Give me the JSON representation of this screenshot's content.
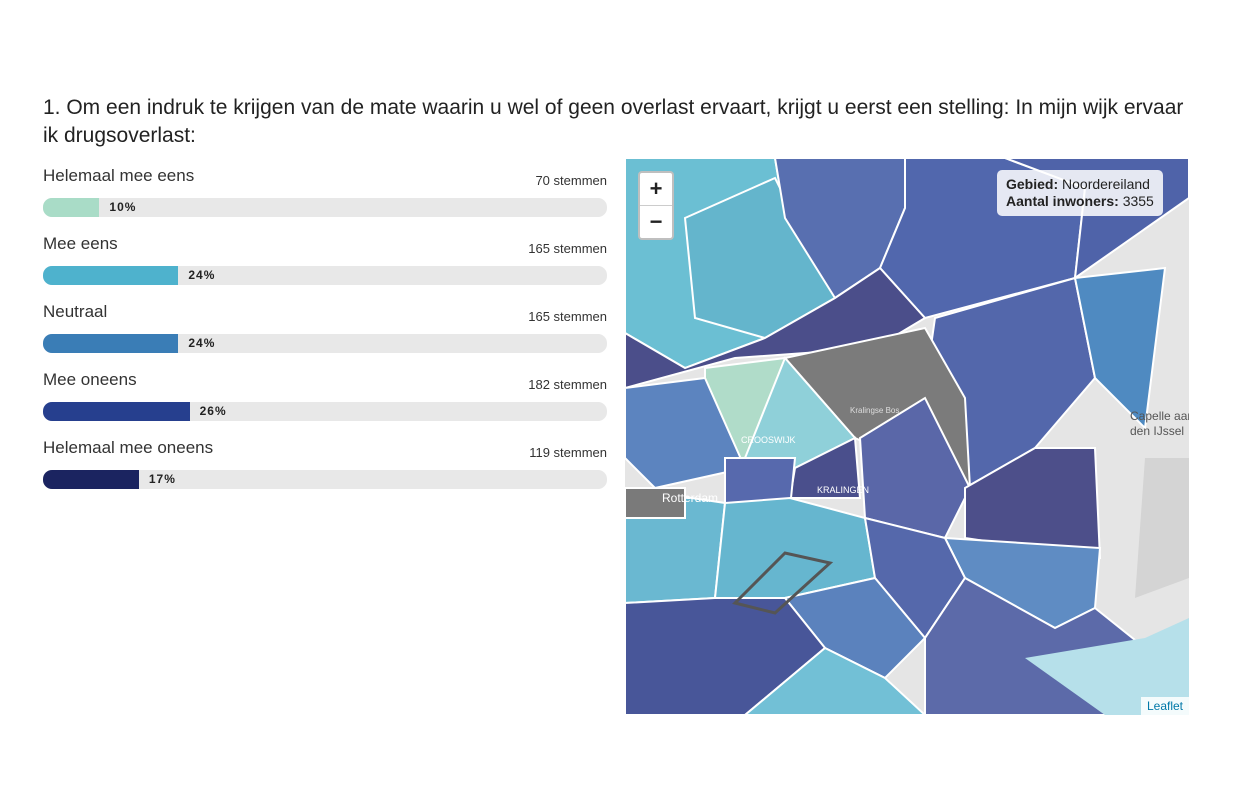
{
  "question": "1. Om een indruk te krijgen van de mate waarin u wel of geen overlast ervaart, krijgt u eerst een stelling: In mijn wijk ervaar ik drugsoverlast:",
  "options": [
    {
      "label": "Helemaal mee eens",
      "votes": "70 stemmen",
      "percent": 10,
      "percent_label": "10%",
      "color": "#a9dcc7"
    },
    {
      "label": "Mee eens",
      "votes": "165 stemmen",
      "percent": 24,
      "percent_label": "24%",
      "color": "#4eb2cd"
    },
    {
      "label": "Neutraal",
      "votes": "165 stemmen",
      "percent": 24,
      "percent_label": "24%",
      "color": "#3a7db6"
    },
    {
      "label": "Mee oneens",
      "votes": "182 stemmen",
      "percent": 26,
      "percent_label": "26%",
      "color": "#263f8e"
    },
    {
      "label": "Helemaal mee oneens",
      "votes": "119 stemmen",
      "percent": 17,
      "percent_label": "17%",
      "color": "#1b2460"
    }
  ],
  "map": {
    "zoom_in": "+",
    "zoom_out": "−",
    "tooltip": {
      "area_key": "Gebied:",
      "area_value": "Noordereiland",
      "population_key": "Aantal inwoners:",
      "population_value": "3355"
    },
    "labels": [
      "Rotterdam",
      "Capelle aan",
      "den IJssel",
      "KRALINGEN",
      "CROOSWIJK",
      "Kralingse Bos"
    ],
    "attribution": "Leaflet"
  }
}
